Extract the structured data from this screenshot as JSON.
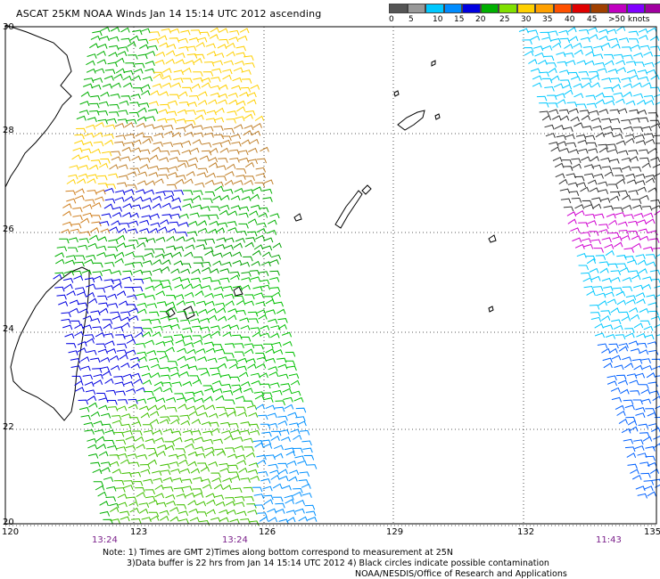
{
  "title": "ASCAT 25KM NOAA Winds Jan 14 15:14 UTC 2012 ascending",
  "legend": {
    "colors": [
      "#555555",
      "#999999",
      "#00c8ff",
      "#008cff",
      "#0000e0",
      "#00b000",
      "#80e000",
      "#ffd000",
      "#ffa000",
      "#ff5000",
      "#e00000",
      "#a04000",
      "#c000c0",
      "#8000ff",
      "#a000a0"
    ],
    "labels": [
      "0",
      "5",
      "10",
      "15",
      "20",
      "25",
      "30",
      "35",
      "40",
      "45",
      ">50 knots"
    ]
  },
  "lat_labels": [
    "30",
    "28",
    "26",
    "24",
    "22",
    "20"
  ],
  "lon_labels": [
    "120",
    "123",
    "126",
    "129",
    "132",
    "135"
  ],
  "time_labels": [
    "13:24",
    "13:24",
    "11:43"
  ],
  "notes": [
    "Note: 1) Times are GMT 2)Times along bottom correspond to measurement at 25N",
    "3)Data buffer is 22 hrs from Jan 14 15:14 UTC 2012 4) Black circles indicate possible contamination",
    "NOAA/NESDIS/Office of Research and Applications"
  ]
}
